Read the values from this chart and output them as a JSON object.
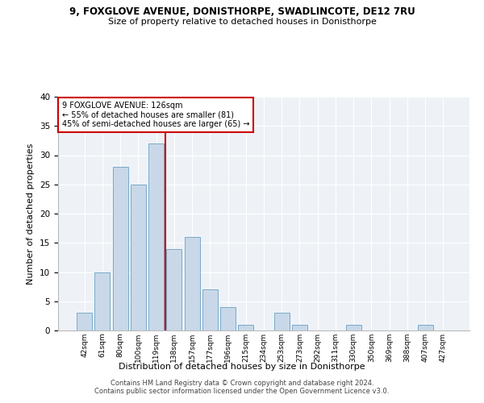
{
  "title1": "9, FOXGLOVE AVENUE, DONISTHORPE, SWADLINCOTE, DE12 7RU",
  "title2": "Size of property relative to detached houses in Donisthorpe",
  "xlabel": "Distribution of detached houses by size in Donisthorpe",
  "ylabel": "Number of detached properties",
  "categories": [
    "42sqm",
    "61sqm",
    "80sqm",
    "100sqm",
    "119sqm",
    "138sqm",
    "157sqm",
    "177sqm",
    "196sqm",
    "215sqm",
    "234sqm",
    "253sqm",
    "273sqm",
    "292sqm",
    "311sqm",
    "330sqm",
    "350sqm",
    "369sqm",
    "388sqm",
    "407sqm",
    "427sqm"
  ],
  "values": [
    3,
    10,
    28,
    25,
    32,
    14,
    16,
    7,
    4,
    1,
    0,
    3,
    1,
    0,
    0,
    1,
    0,
    0,
    0,
    1,
    0
  ],
  "bar_color": "#c8d8e8",
  "bar_edge_color": "#7aaac8",
  "vline_x": 4,
  "vline_color": "#cc0000",
  "annotation_line1": "9 FOXGLOVE AVENUE: 126sqm",
  "annotation_line2": "← 55% of detached houses are smaller (81)",
  "annotation_line3": "45% of semi-detached houses are larger (65) →",
  "annotation_box_color": "#ffffff",
  "annotation_box_edge_color": "#cc0000",
  "ylim": [
    0,
    40
  ],
  "yticks": [
    0,
    5,
    10,
    15,
    20,
    25,
    30,
    35,
    40
  ],
  "footer": "Contains HM Land Registry data © Crown copyright and database right 2024.\nContains public sector information licensed under the Open Government Licence v3.0.",
  "plot_bg_color": "#eef2f7"
}
